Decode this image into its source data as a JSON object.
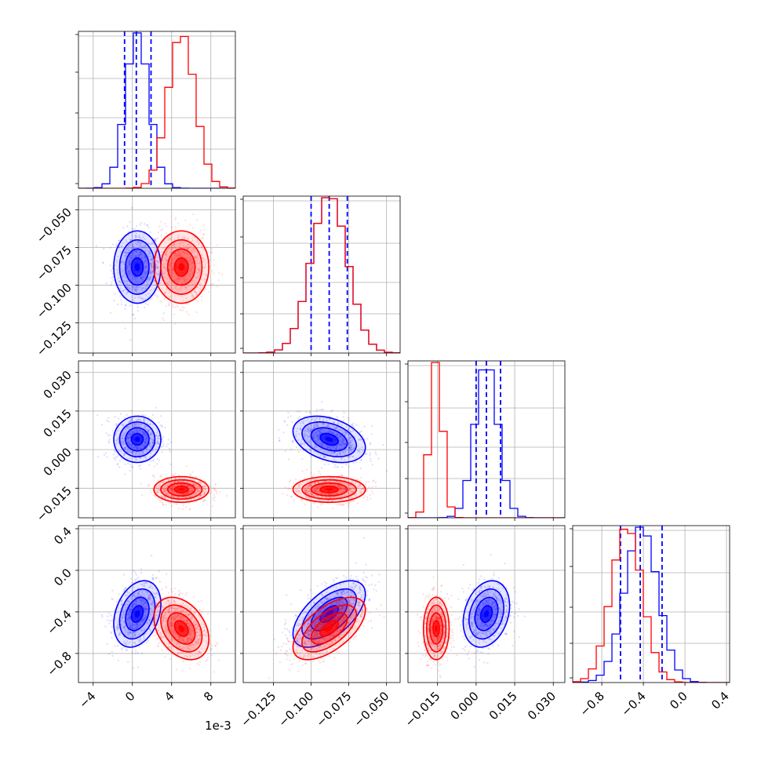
{
  "chart_data": {
    "type": "corner",
    "offset_text": "1e-3",
    "series": [
      {
        "name": "",
        "color": "#0000ff",
        "means": [
          0.0005,
          -0.088,
          0.004,
          -0.42
        ],
        "sigmas": [
          0.0012,
          0.012,
          0.0045,
          0.16
        ],
        "correlations": [
          [
            0,
            1,
            0.0
          ],
          [
            0,
            2,
            0.0
          ],
          [
            0,
            3,
            0.3
          ],
          [
            1,
            2,
            -0.35
          ],
          [
            1,
            3,
            0.6
          ],
          [
            2,
            3,
            0.25
          ]
        ],
        "quantile_lines": [
          [
            -0.0008,
            0.0004,
            0.0019
          ],
          [
            -0.1,
            -0.088,
            -0.076
          ],
          [
            0.0,
            0.004,
            0.0095
          ],
          [
            -0.62,
            -0.43,
            -0.22
          ]
        ]
      },
      {
        "name": "",
        "color": "#ff0000",
        "means": [
          0.005,
          -0.088,
          -0.0155,
          -0.56
        ],
        "sigmas": [
          0.0014,
          0.012,
          0.0025,
          0.15
        ],
        "correlations": [
          [
            0,
            1,
            0.0
          ],
          [
            0,
            2,
            0.0
          ],
          [
            0,
            3,
            -0.35
          ],
          [
            1,
            2,
            0.0
          ],
          [
            1,
            3,
            0.6
          ],
          [
            2,
            3,
            0.0
          ]
        ]
      }
    ],
    "params": [
      {
        "range": [
          -0.0055,
          0.0105
        ],
        "ticks": [
          -0.004,
          0,
          0.004,
          0.008
        ],
        "tick_labels": [
          "−4",
          "0",
          "4",
          "8"
        ]
      },
      {
        "range": [
          -0.145,
          -0.041
        ],
        "ticks": [
          -0.125,
          -0.1,
          -0.075,
          -0.05
        ],
        "tick_labels": [
          "−0.125",
          "−0.100",
          "−0.075",
          "−0.050"
        ]
      },
      {
        "range": [
          -0.0265,
          0.0345
        ],
        "ticks": [
          -0.015,
          0.0,
          0.015,
          0.03
        ],
        "tick_labels": [
          "−0.015",
          "0.000",
          "0.015",
          "0.030"
        ]
      },
      {
        "range": [
          -1.08,
          0.43
        ],
        "ticks": [
          -0.8,
          -0.4,
          0.0,
          0.4
        ],
        "tick_labels": [
          "−0.8",
          "−0.4",
          "0.0",
          "0.4"
        ]
      }
    ],
    "grid": true,
    "histogram_bins": 20,
    "contour_levels": [
      "0.5 sigma",
      "1 sigma",
      "1.5 sigma",
      "2 sigma"
    ]
  }
}
